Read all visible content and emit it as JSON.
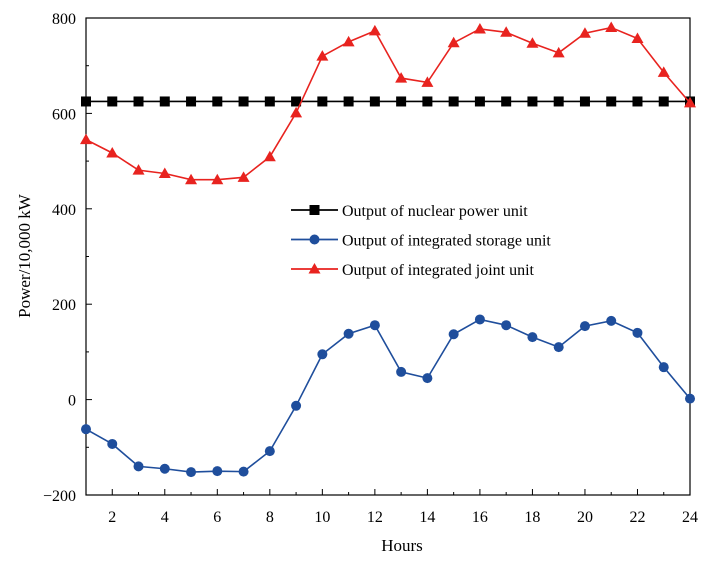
{
  "chart_data": {
    "type": "line",
    "title": "",
    "xlabel": "Hours",
    "ylabel": "Power/10,000 kW",
    "xlim": [
      1,
      24
    ],
    "ylim": [
      -200,
      800
    ],
    "x": [
      1,
      2,
      3,
      4,
      5,
      6,
      7,
      8,
      9,
      10,
      11,
      12,
      13,
      14,
      15,
      16,
      17,
      18,
      19,
      20,
      21,
      22,
      23,
      24
    ],
    "x_ticks": [
      2,
      4,
      6,
      8,
      10,
      12,
      14,
      16,
      18,
      20,
      22,
      24
    ],
    "x_tick_labels": [
      "2",
      "4",
      "6",
      "8",
      "10",
      "12",
      "14",
      "16",
      "18",
      "20",
      "22",
      "24"
    ],
    "y_ticks": [
      -200,
      0,
      200,
      400,
      600,
      800
    ],
    "y_tick_labels": [
      "−200",
      "0",
      "200",
      "400",
      "600",
      "800"
    ],
    "grid": false,
    "legend_position": "center",
    "series": [
      {
        "name": "Output of nuclear power unit",
        "color": "#000000",
        "marker": "square",
        "values": [
          625,
          625,
          625,
          625,
          625,
          625,
          625,
          625,
          625,
          625,
          625,
          625,
          625,
          625,
          625,
          625,
          625,
          625,
          625,
          625,
          625,
          625,
          625,
          625
        ]
      },
      {
        "name": "Output of integrated storage unit",
        "color": "#1f4e9c",
        "marker": "circle",
        "values": [
          -62,
          -93,
          -140,
          -145,
          -152,
          -150,
          -151,
          -108,
          -13,
          95,
          138,
          156,
          58,
          45,
          137,
          168,
          156,
          131,
          110,
          154,
          165,
          140,
          68,
          2
        ]
      },
      {
        "name": "Output of integrated joint unit",
        "color": "#e8231f",
        "marker": "triangle",
        "values": [
          545,
          517,
          481,
          474,
          461,
          461,
          466,
          509,
          601,
          720,
          750,
          773,
          674,
          665,
          748,
          777,
          770,
          747,
          727,
          768,
          780,
          757,
          686,
          622
        ]
      }
    ]
  }
}
